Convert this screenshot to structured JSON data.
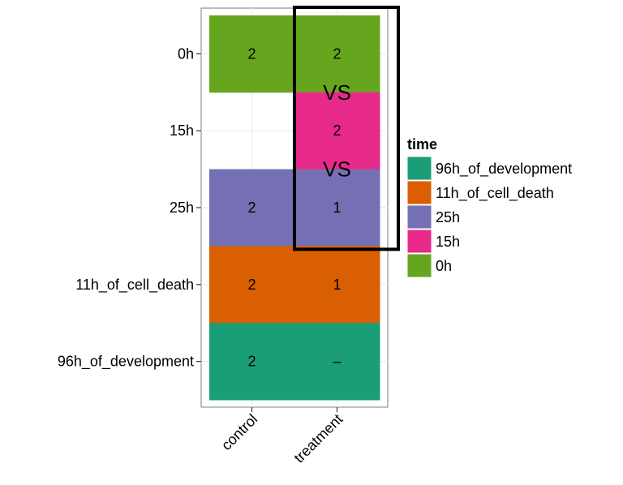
{
  "chart_data": {
    "type": "heatmap",
    "x_categories": [
      "control",
      "treatment"
    ],
    "y_categories": [
      "0h",
      "15h",
      "25h",
      "11h_of_cell_death",
      "96h_of_development"
    ],
    "cells": [
      {
        "x": "control",
        "y": "0h",
        "label": "2",
        "fill": "0h"
      },
      {
        "x": "treatment",
        "y": "0h",
        "label": "2",
        "fill": "0h"
      },
      {
        "x": "treatment",
        "y": "15h",
        "label": "2",
        "fill": "15h"
      },
      {
        "x": "control",
        "y": "25h",
        "label": "2",
        "fill": "25h"
      },
      {
        "x": "treatment",
        "y": "25h",
        "label": "1",
        "fill": "25h"
      },
      {
        "x": "control",
        "y": "11h_of_cell_death",
        "label": "2",
        "fill": "11h_of_cell_death"
      },
      {
        "x": "treatment",
        "y": "11h_of_cell_death",
        "label": "1",
        "fill": "11h_of_cell_death"
      },
      {
        "x": "control",
        "y": "96h_of_development",
        "label": "2",
        "fill": "96h_of_development"
      },
      {
        "x": "treatment",
        "y": "96h_of_development",
        "label": "–",
        "fill": "96h_of_development"
      }
    ],
    "colors": {
      "96h_of_development": "#1B9E77",
      "11h_of_cell_death": "#D95F02",
      "25h": "#7570B3",
      "15h": "#E7298A",
      "0h": "#66A61E"
    },
    "legend": {
      "title": "time",
      "placement": "right",
      "entries": [
        "96h_of_development",
        "11h_of_cell_death",
        "25h",
        "15h",
        "0h"
      ]
    },
    "annotations": [
      {
        "text": "VS",
        "between": [
          "0h",
          "15h"
        ],
        "column": "treatment"
      },
      {
        "text": "VS",
        "between": [
          "15h",
          "25h"
        ],
        "column": "treatment"
      }
    ],
    "highlight": {
      "column": "treatment",
      "rows": [
        "0h",
        "25h"
      ],
      "style": "black outline box"
    },
    "grid": true,
    "xlabel": "",
    "ylabel": ""
  }
}
